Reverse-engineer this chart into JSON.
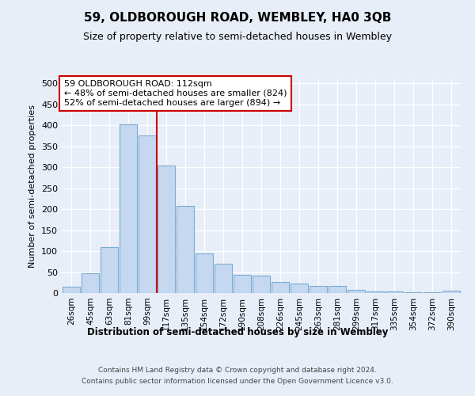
{
  "title": "59, OLDBOROUGH ROAD, WEMBLEY, HA0 3QB",
  "subtitle": "Size of property relative to semi-detached houses in Wembley",
  "xlabel": "Distribution of semi-detached houses by size in Wembley",
  "ylabel": "Number of semi-detached properties",
  "categories": [
    "26sqm",
    "45sqm",
    "63sqm",
    "81sqm",
    "99sqm",
    "117sqm",
    "135sqm",
    "154sqm",
    "172sqm",
    "190sqm",
    "208sqm",
    "226sqm",
    "245sqm",
    "263sqm",
    "281sqm",
    "299sqm",
    "317sqm",
    "335sqm",
    "354sqm",
    "372sqm",
    "390sqm"
  ],
  "values": [
    15,
    47,
    110,
    403,
    375,
    305,
    207,
    95,
    70,
    43,
    42,
    27,
    23,
    17,
    17,
    8,
    4,
    4,
    1,
    1,
    5
  ],
  "bar_color": "#c5d8f0",
  "bar_edge_color": "#7aadd4",
  "marker_label": "59 OLDBOROUGH ROAD: 112sqm",
  "annotation_line1": "← 48% of semi-detached houses are smaller (824)",
  "annotation_line2": "52% of semi-detached houses are larger (894) →",
  "marker_color": "#cc0000",
  "ylim": [
    0,
    510
  ],
  "yticks": [
    0,
    50,
    100,
    150,
    200,
    250,
    300,
    350,
    400,
    450,
    500
  ],
  "footer_line1": "Contains HM Land Registry data © Crown copyright and database right 2024.",
  "footer_line2": "Contains public sector information licensed under the Open Government Licence v3.0.",
  "bg_color": "#e8eef8",
  "plot_bg_color": "#e8eef8"
}
